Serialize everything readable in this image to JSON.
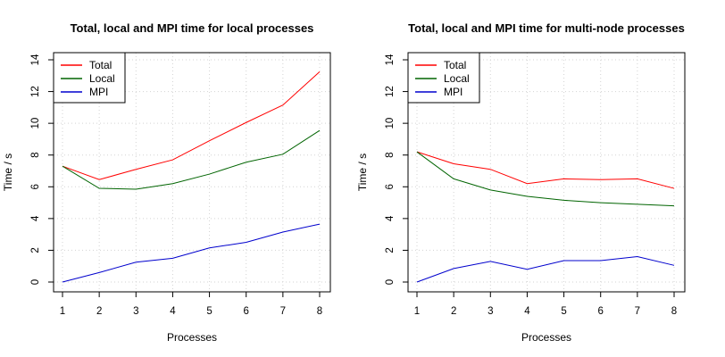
{
  "chart_data": [
    {
      "type": "line",
      "title": "Total, local and MPI time for local processes",
      "xlabel": "Processes",
      "ylabel": "Time / s",
      "x": [
        1,
        2,
        3,
        4,
        5,
        6,
        7,
        8
      ],
      "xlim": [
        1,
        8
      ],
      "ylim": [
        0,
        14
      ],
      "xticks": [
        "1",
        "2",
        "3",
        "4",
        "5",
        "6",
        "7",
        "8"
      ],
      "yticks": [
        "0",
        "2",
        "4",
        "6",
        "8",
        "10",
        "12",
        "14"
      ],
      "grid": true,
      "legend_position": "top-left",
      "series": [
        {
          "name": "Total",
          "color": "#ff0000",
          "values": [
            7.3,
            6.45,
            7.1,
            7.7,
            8.9,
            10.05,
            11.15,
            13.25
          ]
        },
        {
          "name": "Local",
          "color": "#006400",
          "values": [
            7.3,
            5.9,
            5.85,
            6.2,
            6.8,
            7.55,
            8.05,
            9.55
          ]
        },
        {
          "name": "MPI",
          "color": "#0000cd",
          "values": [
            0.0,
            0.6,
            1.25,
            1.5,
            2.15,
            2.5,
            3.15,
            3.65
          ]
        }
      ]
    },
    {
      "type": "line",
      "title": "Total, local and MPI time for multi-node processes",
      "xlabel": "Processes",
      "ylabel": "Time / s",
      "x": [
        1,
        2,
        3,
        4,
        5,
        6,
        7,
        8
      ],
      "xlim": [
        1,
        8
      ],
      "ylim": [
        0,
        14
      ],
      "xticks": [
        "1",
        "2",
        "3",
        "4",
        "5",
        "6",
        "7",
        "8"
      ],
      "yticks": [
        "0",
        "2",
        "4",
        "6",
        "8",
        "10",
        "12",
        "14"
      ],
      "grid": true,
      "legend_position": "top-left",
      "series": [
        {
          "name": "Total",
          "color": "#ff0000",
          "values": [
            8.2,
            7.45,
            7.1,
            6.2,
            6.5,
            6.45,
            6.5,
            5.9
          ]
        },
        {
          "name": "Local",
          "color": "#006400",
          "values": [
            8.2,
            6.5,
            5.8,
            5.4,
            5.15,
            5.0,
            4.9,
            4.8
          ]
        },
        {
          "name": "MPI",
          "color": "#0000cd",
          "values": [
            0.0,
            0.85,
            1.3,
            0.8,
            1.35,
            1.35,
            1.6,
            1.05
          ]
        }
      ]
    }
  ]
}
